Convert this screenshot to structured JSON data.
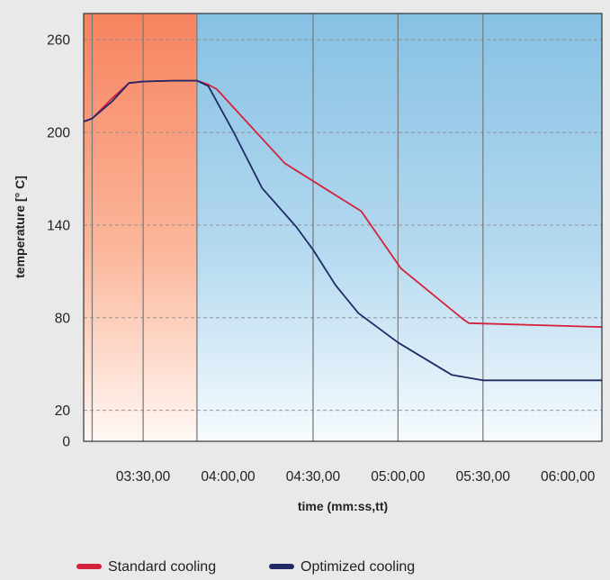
{
  "chart_data": {
    "type": "line",
    "xlabel": "time (mm:ss,tt)",
    "ylabel": "temperature [° C]",
    "x_unit": "mm:ss,tt",
    "xlim": [
      "03:09,00",
      "06:12,00"
    ],
    "ylim": [
      0,
      277
    ],
    "x_ticks": [
      "03:30,00",
      "04:00,00",
      "04:30,00",
      "05:00,00",
      "05:30,00",
      "06:00,00"
    ],
    "y_ticks": [
      0,
      20,
      80,
      140,
      200,
      260
    ],
    "grid": true,
    "legend_position": "bottom",
    "heating_region": {
      "from": "03:09,00",
      "to": "03:49,00",
      "color": "#f7835f"
    },
    "cooling_region": {
      "from": "03:49,00",
      "to": "06:12,00",
      "color": "#86c1e4"
    },
    "vertical_markers": [
      "03:12,00",
      "03:30,00",
      "03:49,00",
      "04:30,00",
      "05:00,00",
      "05:30,00"
    ],
    "series": [
      {
        "name": "Standard cooling",
        "color": "#d4223a",
        "points": [
          [
            "03:09,00",
            207
          ],
          [
            "03:12,00",
            209
          ],
          [
            "03:19,00",
            222
          ],
          [
            "03:25,00",
            232
          ],
          [
            "03:30,00",
            233
          ],
          [
            "03:40,00",
            233.5
          ],
          [
            "03:49,00",
            233.5
          ],
          [
            "03:53,00",
            231
          ],
          [
            "03:56,00",
            228
          ],
          [
            "04:20,00",
            180
          ],
          [
            "04:47,00",
            149
          ],
          [
            "05:01,00",
            112
          ],
          [
            "05:23,00",
            79
          ],
          [
            "05:25,00",
            76.5
          ],
          [
            "06:12,00",
            74
          ]
        ]
      },
      {
        "name": "Optimized cooling",
        "color": "#1f2a66",
        "points": [
          [
            "03:09,00",
            207
          ],
          [
            "03:12,00",
            209
          ],
          [
            "03:19,00",
            220
          ],
          [
            "03:25,00",
            232
          ],
          [
            "03:30,00",
            233
          ],
          [
            "03:40,00",
            233.5
          ],
          [
            "03:49,00",
            233.5
          ],
          [
            "03:53,00",
            230
          ],
          [
            "04:02,00",
            200
          ],
          [
            "04:12,00",
            164
          ],
          [
            "04:24,00",
            139
          ],
          [
            "04:30,00",
            124
          ],
          [
            "04:38,00",
            101
          ],
          [
            "04:46,00",
            83
          ],
          [
            "05:00,00",
            64
          ],
          [
            "05:19,00",
            43
          ],
          [
            "05:30,00",
            39.5
          ],
          [
            "06:12,00",
            39.5
          ]
        ]
      }
    ]
  }
}
